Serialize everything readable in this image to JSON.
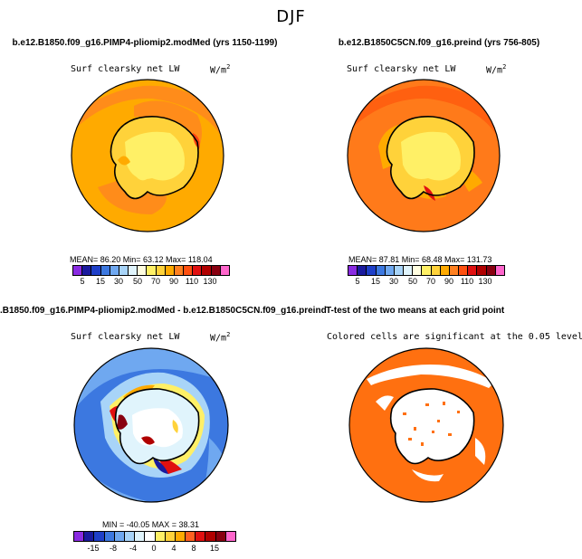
{
  "figure_title": "DJF",
  "panels": {
    "top_left": {
      "title": "b.e12.B1850.f09_g16.PIMP4-pliomip2.modMed (yrs 1150-1199)",
      "variable": "Surf clearsky net LW",
      "units": "W/m",
      "units_sup": "2",
      "stats": "MEAN=   86.20   Min=   63.12   Max= 118.04",
      "colorbar_labels": [
        "5",
        "15",
        "30",
        "50",
        "70",
        "90",
        "110",
        "130"
      ],
      "colorbar_colors": [
        "#8a2be2",
        "#1a1a9e",
        "#1e3fc8",
        "#3c78e0",
        "#6fa8f0",
        "#a8d4f8",
        "#e0f4fc",
        "#fffde0",
        "#fff066",
        "#ffd23a",
        "#ffaa00",
        "#ff8020",
        "#ff5010",
        "#e01010",
        "#b00000",
        "#880010",
        "#ff66cc"
      ]
    },
    "top_right": {
      "title": "b.e12.B1850C5CN.f09_g16.preind (yrs 756-805)",
      "variable": "Surf clearsky net LW",
      "units": "W/m",
      "units_sup": "2",
      "stats": "MEAN=   87.81   Min=   68.48   Max= 131.73",
      "colorbar_labels": [
        "5",
        "15",
        "30",
        "50",
        "70",
        "90",
        "110",
        "130"
      ]
    },
    "bottom_left": {
      "title": ".B1850.f09_g16.PIMP4-pliomip2.modMed - b.e12.B1850C5CN.f09_g16.preind",
      "variable": "Surf clearsky net LW",
      "units": "W/m",
      "units_sup": "2",
      "stats": "MIN = -40.05  MAX =   38.31",
      "colorbar_labels": [
        "-15",
        "-8",
        "-4",
        "0",
        "4",
        "8",
        "15"
      ],
      "colorbar_colors": [
        "#8a2be2",
        "#1a1a9e",
        "#1e3fc8",
        "#3c78e0",
        "#6fa8f0",
        "#a8d4f8",
        "#e0f4fc",
        "#ffffff",
        "#fff066",
        "#ffd23a",
        "#ffaa00",
        "#ff6020",
        "#e01010",
        "#b00000",
        "#880010",
        "#ff66cc"
      ]
    },
    "bottom_right": {
      "title": "T-test of the two means at each grid point",
      "variable": "Colored cells are significant at the 0.05 level"
    }
  }
}
